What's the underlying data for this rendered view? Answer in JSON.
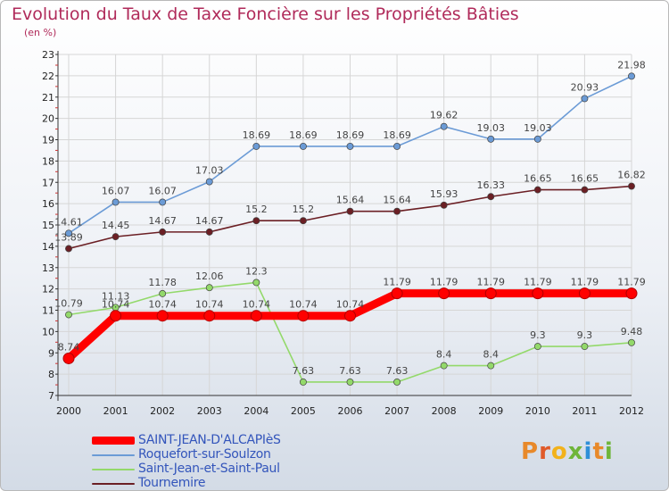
{
  "page": {
    "title": "Evolution du Taux de Taxe Foncière sur les Propriétés Bâties",
    "unit_label": "(en %)",
    "logo_text": "Proxiti",
    "logo_colors": [
      "#e8892a",
      "#e05a2a",
      "#f2b21b",
      "#6fb53a",
      "#2f8fd8",
      "#e8892a",
      "#6fb53a"
    ]
  },
  "chart_data": {
    "type": "line",
    "x": [
      "2000",
      "2001",
      "2002",
      "2003",
      "2004",
      "2005",
      "2006",
      "2007",
      "2008",
      "2009",
      "2010",
      "2011",
      "2012"
    ],
    "ylim": [
      7,
      23
    ],
    "yticks": [
      7,
      8,
      9,
      10,
      11,
      12,
      13,
      14,
      15,
      16,
      17,
      18,
      19,
      20,
      21,
      22,
      23
    ],
    "grid": true,
    "legend_position": "bottom-left",
    "series": [
      {
        "name": "SAINT-JEAN-D'ALCAPIèS",
        "color": "#ff0000",
        "values": [
          8.74,
          10.74,
          10.74,
          10.74,
          10.74,
          10.74,
          10.74,
          11.79,
          11.79,
          11.79,
          11.79,
          11.79,
          11.79
        ],
        "labels": [
          "8.74",
          "10.74",
          "10.74",
          "10.74",
          "10.74",
          "10.74",
          "10.74",
          "11.79",
          "11.79",
          "11.79",
          "11.79",
          "11.79",
          "11.79"
        ]
      },
      {
        "name": "Roquefort-sur-Soulzon",
        "color": "#6b9bd6",
        "values": [
          14.61,
          16.07,
          16.07,
          17.03,
          18.69,
          18.69,
          18.69,
          18.69,
          19.62,
          19.03,
          19.03,
          20.93,
          21.98
        ],
        "labels": [
          "14.61",
          "16.07",
          "16.07",
          "17.03",
          "18.69",
          "18.69",
          "18.69",
          "18.69",
          "19.62",
          "19.03",
          "19.03",
          "20.93",
          "21.98"
        ]
      },
      {
        "name": "Saint-Jean-et-Saint-Paul",
        "color": "#93d96a",
        "values": [
          10.79,
          11.13,
          11.78,
          12.06,
          12.3,
          7.63,
          7.63,
          7.63,
          8.4,
          8.4,
          9.3,
          9.3,
          9.48
        ],
        "labels": [
          "10.79",
          "11.13",
          "11.78",
          "12.06",
          "12.3",
          "7.63",
          "7.63",
          "7.63",
          "8.4",
          "8.4",
          "9.3",
          "9.3",
          "9.48"
        ]
      },
      {
        "name": "Tournemire",
        "color": "#6b1f24",
        "values": [
          13.89,
          14.45,
          14.67,
          14.67,
          15.2,
          15.2,
          15.64,
          15.64,
          15.93,
          16.33,
          16.65,
          16.65,
          16.82
        ],
        "labels": [
          "13.89",
          "14.45",
          "14.67",
          "14.67",
          "15.2",
          "15.2",
          "15.64",
          "15.64",
          "15.93",
          "16.33",
          "16.65",
          "16.65",
          "16.82"
        ]
      }
    ]
  }
}
